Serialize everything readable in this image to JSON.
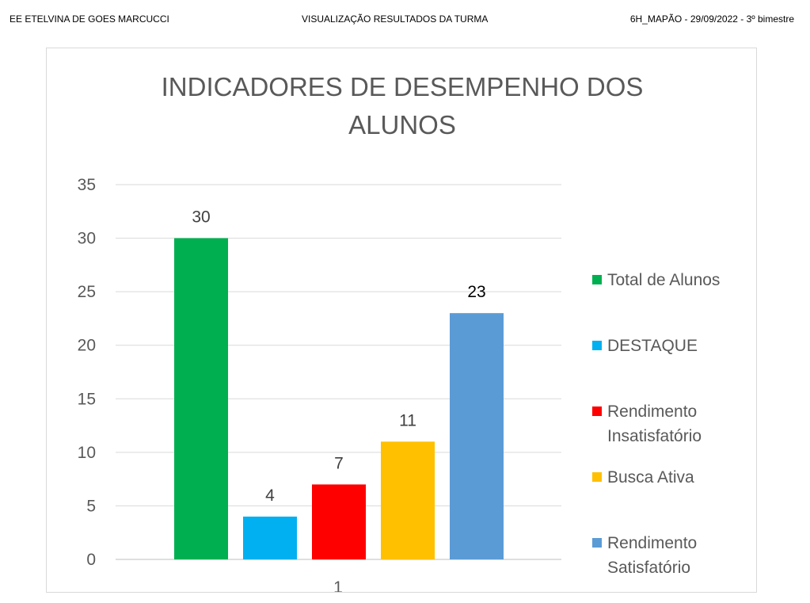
{
  "header": {
    "left": "EE ETELVINA DE GOES MARCUCCI",
    "center": "VISUALIZAÇÃO  RESULTADOS DA TURMA",
    "right": "6H_MAPÃO - 29/09/2022 - 3º bimestre"
  },
  "chart_data": {
    "type": "bar",
    "title_lines": [
      "INDICADORES DE DESEMPENHO DOS",
      "ALUNOS"
    ],
    "categories": [
      "1"
    ],
    "ylim": [
      0,
      35
    ],
    "yticks": [
      0,
      5,
      10,
      15,
      20,
      25,
      30,
      35
    ],
    "grid": true,
    "legend_position": "right",
    "series": [
      {
        "name": "Total de Alunos",
        "name_lines": [
          "Total de Alunos"
        ],
        "values": [
          30
        ],
        "color": "#00b050"
      },
      {
        "name": "DESTAQUE",
        "name_lines": [
          "DESTAQUE"
        ],
        "values": [
          4
        ],
        "color": "#00b0f0"
      },
      {
        "name": "Rendimento Insatisfatório",
        "name_lines": [
          "Rendimento",
          "Insatisfatório"
        ],
        "values": [
          7
        ],
        "color": "#ff0000"
      },
      {
        "name": "Busca Ativa",
        "name_lines": [
          "Busca Ativa"
        ],
        "values": [
          11
        ],
        "color": "#ffc000"
      },
      {
        "name": "Rendimento Satisfatório",
        "name_lines": [
          "Rendimento",
          "Satisfatório"
        ],
        "values": [
          23
        ],
        "color": "#5b9bd5"
      }
    ]
  }
}
